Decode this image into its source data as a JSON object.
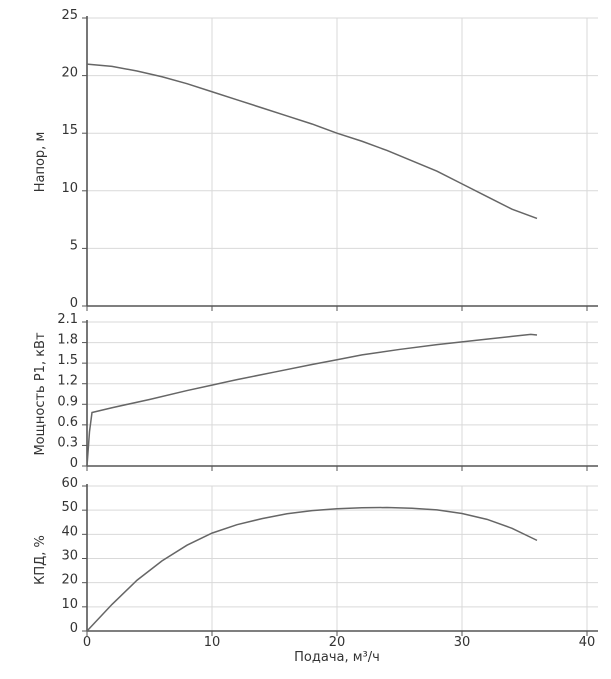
{
  "chart_data": [
    {
      "type": "line",
      "ylabel": "Напор, м",
      "xlim": [
        0,
        40
      ],
      "ylim": [
        0,
        25
      ],
      "yticks": [
        0,
        5,
        10,
        15,
        20,
        25
      ],
      "xticks": [
        0,
        10,
        20,
        30,
        40
      ],
      "grid": true,
      "series": [
        {
          "x": [
            0,
            2,
            4,
            6,
            8,
            10,
            12,
            14,
            16,
            18,
            20,
            22,
            24,
            26,
            28,
            30,
            32,
            34,
            36
          ],
          "y": [
            21.0,
            20.8,
            20.4,
            19.9,
            19.3,
            18.6,
            17.9,
            17.2,
            16.5,
            15.8,
            15.0,
            14.3,
            13.5,
            12.6,
            11.7,
            10.6,
            9.5,
            8.4,
            7.6
          ]
        }
      ]
    },
    {
      "type": "line",
      "ylabel": "Мощность P1, кВт",
      "xlim": [
        0,
        40
      ],
      "ylim": [
        0,
        2.1
      ],
      "yticks": [
        0,
        0.3,
        0.6,
        0.9,
        1.2,
        1.5,
        1.8,
        2.1
      ],
      "ytick_labels": [
        "0",
        "0.3",
        "0.6",
        "0.9",
        "1.2",
        "1.5",
        "1.8",
        "2.1"
      ],
      "xticks": [
        0,
        10,
        20,
        30,
        40
      ],
      "grid": true,
      "series": [
        {
          "x": [
            0,
            0.2,
            0.4,
            2,
            5,
            8,
            10,
            12,
            15,
            18,
            20,
            22,
            25,
            28,
            30,
            32,
            34,
            35.5,
            36
          ],
          "y": [
            0,
            0.5,
            0.78,
            0.85,
            0.97,
            1.1,
            1.18,
            1.26,
            1.37,
            1.48,
            1.55,
            1.62,
            1.7,
            1.77,
            1.81,
            1.85,
            1.89,
            1.92,
            1.91
          ]
        }
      ]
    },
    {
      "type": "line",
      "ylabel": "КПД, %",
      "xlabel": "Подача, м³/ч",
      "xlim": [
        0,
        40
      ],
      "ylim": [
        0,
        60
      ],
      "yticks": [
        0,
        10,
        20,
        30,
        40,
        50,
        60
      ],
      "xticks": [
        0,
        10,
        20,
        30,
        40
      ],
      "xtick_labels": [
        "0",
        "10",
        "20",
        "30",
        "40"
      ],
      "grid": true,
      "series": [
        {
          "x": [
            0,
            2,
            4,
            6,
            8,
            10,
            12,
            14,
            16,
            18,
            20,
            22,
            24,
            26,
            28,
            30,
            32,
            34,
            36
          ],
          "y": [
            0,
            11,
            21,
            29,
            35.5,
            40.5,
            44,
            46.5,
            48.5,
            49.8,
            50.6,
            51.0,
            51.1,
            50.8,
            50.1,
            48.6,
            46.2,
            42.5,
            37.5
          ]
        }
      ]
    }
  ]
}
